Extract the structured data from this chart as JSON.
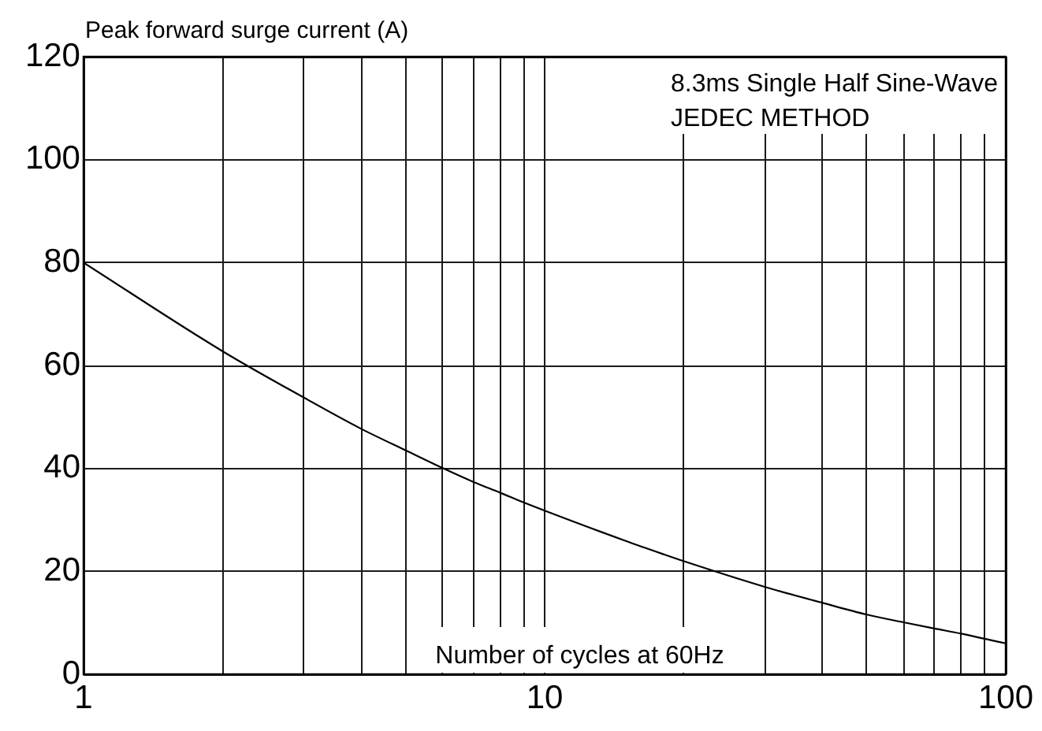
{
  "chart_data": {
    "type": "line",
    "ylabel": "Peak forward surge current (A)",
    "xlabel": "Number of cycles at 60Hz",
    "annotations": [
      "8.3ms Single Half Sine-Wave\nJEDEC METHOD"
    ],
    "x": [
      1,
      2,
      3,
      4,
      5,
      6,
      7,
      8,
      9,
      10,
      15,
      18,
      20,
      30,
      40,
      50,
      60,
      70,
      80,
      90,
      100
    ],
    "series": [
      {
        "color": "#000000",
        "values": [
          80,
          62.8,
          53.8,
          47.7,
          43.5,
          40.1,
          37.4,
          35.3,
          33.4,
          31.8,
          25.9,
          23.4,
          22.0,
          17.0,
          13.9,
          11.6,
          10.1,
          8.9,
          7.9,
          6.9,
          6.0
        ]
      }
    ],
    "log": "x",
    "xlim": [
      1,
      100
    ],
    "ylim": [
      0,
      120
    ],
    "xticks": [
      1,
      {
        "value": 2,
        "label": null
      },
      {
        "value": 3,
        "label": null
      },
      {
        "value": 4,
        "label": null
      },
      {
        "value": 5,
        "label": null
      },
      {
        "value": 6,
        "label": null
      },
      {
        "value": 7,
        "label": null
      },
      {
        "value": 8,
        "label": null
      },
      {
        "value": 9,
        "label": null
      },
      10,
      {
        "value": 20,
        "label": null
      },
      {
        "value": 30,
        "label": null
      },
      {
        "value": 40,
        "label": null
      },
      {
        "value": 50,
        "label": null
      },
      {
        "value": 60,
        "label": null
      },
      {
        "value": 70,
        "label": null
      },
      {
        "value": 80,
        "label": null
      },
      {
        "value": 90,
        "label": null
      },
      100
    ],
    "yticks": [
      0,
      20,
      40,
      60,
      80,
      100,
      120
    ],
    "grid": true,
    "marker": "none"
  }
}
